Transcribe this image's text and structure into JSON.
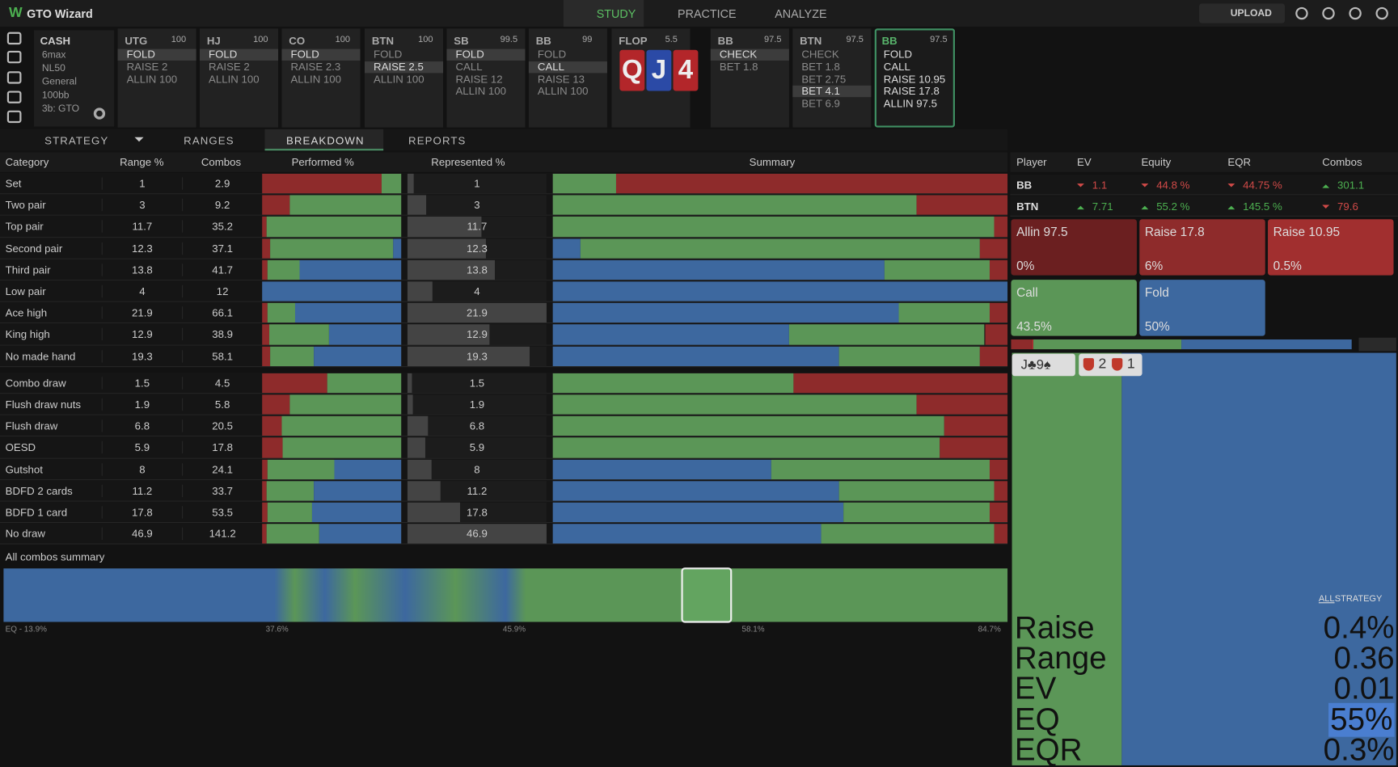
{
  "header": {
    "logo": "GTO Wizard",
    "nav": [
      "STUDY",
      "PRACTICE",
      "ANALYZE"
    ],
    "active": 0,
    "upload": "UPLOAD"
  },
  "config": {
    "title": "CASH",
    "items": [
      "6max",
      "NL50",
      "General",
      "100bb",
      "3b: GTO"
    ]
  },
  "action_columns": [
    {
      "position": "UTG",
      "stack": "100",
      "options": [
        "FOLD",
        "RAISE 2",
        "ALLIN 100"
      ],
      "selected": 0
    },
    {
      "position": "HJ",
      "stack": "100",
      "options": [
        "FOLD",
        "RAISE 2",
        "ALLIN 100"
      ],
      "selected": 0
    },
    {
      "position": "CO",
      "stack": "100",
      "options": [
        "FOLD",
        "RAISE 2.3",
        "ALLIN 100"
      ],
      "selected": 0
    },
    {
      "position": "BTN",
      "stack": "100",
      "options": [
        "FOLD",
        "RAISE 2.5",
        "ALLIN 100"
      ],
      "selected": 1
    },
    {
      "position": "SB",
      "stack": "99.5",
      "options": [
        "FOLD",
        "CALL",
        "RAISE 12",
        "ALLIN 100"
      ],
      "selected": 0
    },
    {
      "position": "BB",
      "stack": "99",
      "options": [
        "FOLD",
        "CALL",
        "RAISE 13",
        "ALLIN 100"
      ],
      "selected": 1
    },
    {
      "position": "FLOP",
      "stack": "5.5",
      "cards": [
        "Q",
        "J",
        "4"
      ],
      "card_colors": [
        "#b3262a",
        "#2b4aa6",
        "#b3262a"
      ]
    },
    {
      "position": "BB",
      "stack": "97.5",
      "options": [
        "CHECK",
        "BET 1.8"
      ],
      "selected": 0
    },
    {
      "position": "BTN",
      "stack": "97.5",
      "options": [
        "CHECK",
        "BET 1.8",
        "BET 2.75",
        "BET 4.1",
        "BET 6.9"
      ],
      "selected": 3
    },
    {
      "position": "BB",
      "stack": "97.5",
      "options": [
        "FOLD",
        "CALL",
        "RAISE 10.95",
        "RAISE 17.8",
        "ALLIN 97.5"
      ],
      "active": true
    }
  ],
  "tabs": {
    "items": [
      "STRATEGY",
      "RANGES",
      "BREAKDOWN",
      "REPORTS"
    ],
    "active": 2
  },
  "breakdown": {
    "columns": [
      "Category",
      "Range %",
      "Combos",
      "Performed %",
      "Represented %",
      "Summary"
    ],
    "colors": [
      "#8e2b2b",
      "#5b9657",
      "#3d689f"
    ],
    "groups": [
      [
        {
          "category": "Set",
          "range": 1,
          "combos": 2.9,
          "performed": [
            86,
            14,
            0
          ]
        },
        {
          "category": "Two pair",
          "range": 3,
          "combos": 9.2,
          "performed": [
            20,
            80,
            0
          ]
        },
        {
          "category": "Top pair",
          "range": 11.7,
          "combos": 35.2,
          "performed": [
            3,
            97,
            0
          ]
        },
        {
          "category": "Second pair",
          "range": 12.3,
          "combos": 37.1,
          "performed": [
            6,
            88,
            6
          ]
        },
        {
          "category": "Third pair",
          "range": 13.8,
          "combos": 41.7,
          "performed": [
            4,
            23,
            73
          ]
        },
        {
          "category": "Low pair",
          "range": 4,
          "combos": 12,
          "performed": [
            0,
            0,
            100
          ]
        },
        {
          "category": "Ace high",
          "range": 21.9,
          "combos": 66.1,
          "performed": [
            4,
            20,
            76
          ]
        },
        {
          "category": "King high",
          "range": 12.9,
          "combos": 38.9,
          "performed": [
            5,
            43,
            52
          ]
        },
        {
          "category": "No made hand",
          "range": 19.3,
          "combos": 58.1,
          "performed": [
            6,
            31,
            63
          ]
        }
      ],
      [
        {
          "category": "Combo draw",
          "range": 1.5,
          "combos": 4.5,
          "performed": [
            47,
            53,
            0
          ]
        },
        {
          "category": "Flush draw nuts",
          "range": 1.9,
          "combos": 5.8,
          "performed": [
            20,
            80,
            0
          ]
        },
        {
          "category": "Flush draw",
          "range": 6.8,
          "combos": 20.5,
          "performed": [
            14,
            86,
            0
          ]
        },
        {
          "category": "OESD",
          "range": 5.9,
          "combos": 17.8,
          "performed": [
            15,
            85,
            0
          ]
        },
        {
          "category": "Gutshot",
          "range": 8,
          "combos": 24.1,
          "performed": [
            4,
            48,
            48
          ]
        },
        {
          "category": "BDFD 2 cards",
          "range": 11.2,
          "combos": 33.7,
          "performed": [
            3,
            34,
            63
          ]
        },
        {
          "category": "BDFD 1 card",
          "range": 17.8,
          "combos": 53.5,
          "performed": [
            4,
            32,
            64
          ]
        },
        {
          "category": "No draw",
          "range": 46.9,
          "combos": 141.2,
          "performed": [
            3,
            38,
            59
          ]
        }
      ]
    ]
  },
  "all_combos": {
    "title": "All combos summary",
    "axis": [
      "EQ - 13.9%",
      "37.6%",
      "45.9%",
      "58.1%",
      "84.7%"
    ]
  },
  "players": {
    "columns": [
      "Player",
      "EV",
      "Equity",
      "EQR",
      "Combos"
    ],
    "rows": [
      {
        "cells": [
          "BB",
          "1.1",
          "44.8 %",
          "44.75 %",
          "301.1"
        ],
        "up": [
          false,
          false,
          false,
          true
        ]
      },
      {
        "cells": [
          "BTN",
          "7.71",
          "55.2 %",
          "145.5 %",
          "79.6"
        ],
        "up": [
          true,
          true,
          true,
          false
        ]
      }
    ]
  },
  "actions": [
    {
      "name": "Allin 97.5",
      "value": 0,
      "label": "0%",
      "color": "#6b1f20"
    },
    {
      "name": "Raise 17.8",
      "value": 6,
      "label": "6%",
      "color": "#8e2b2b"
    },
    {
      "name": "Raise 10.95",
      "value": 0.5,
      "label": "0.5%",
      "color": "#a12f2f"
    },
    {
      "name": "Call",
      "value": 43.5,
      "label": "43.5%",
      "color": "#5b9657"
    },
    {
      "name": "Fold",
      "value": 50,
      "label": "50%",
      "color": "#3d689f"
    }
  ],
  "hand": {
    "cards": "J♣9♠",
    "combos": [
      "2",
      "1"
    ]
  },
  "stats": {
    "toggle": [
      "ALL",
      "STRATEGY"
    ],
    "labels": [
      "Raise",
      "Range",
      "EV",
      "EQ",
      "EQR"
    ],
    "values": [
      "0.4%",
      "0.36",
      "0.01",
      "55%",
      "0.3%"
    ]
  }
}
